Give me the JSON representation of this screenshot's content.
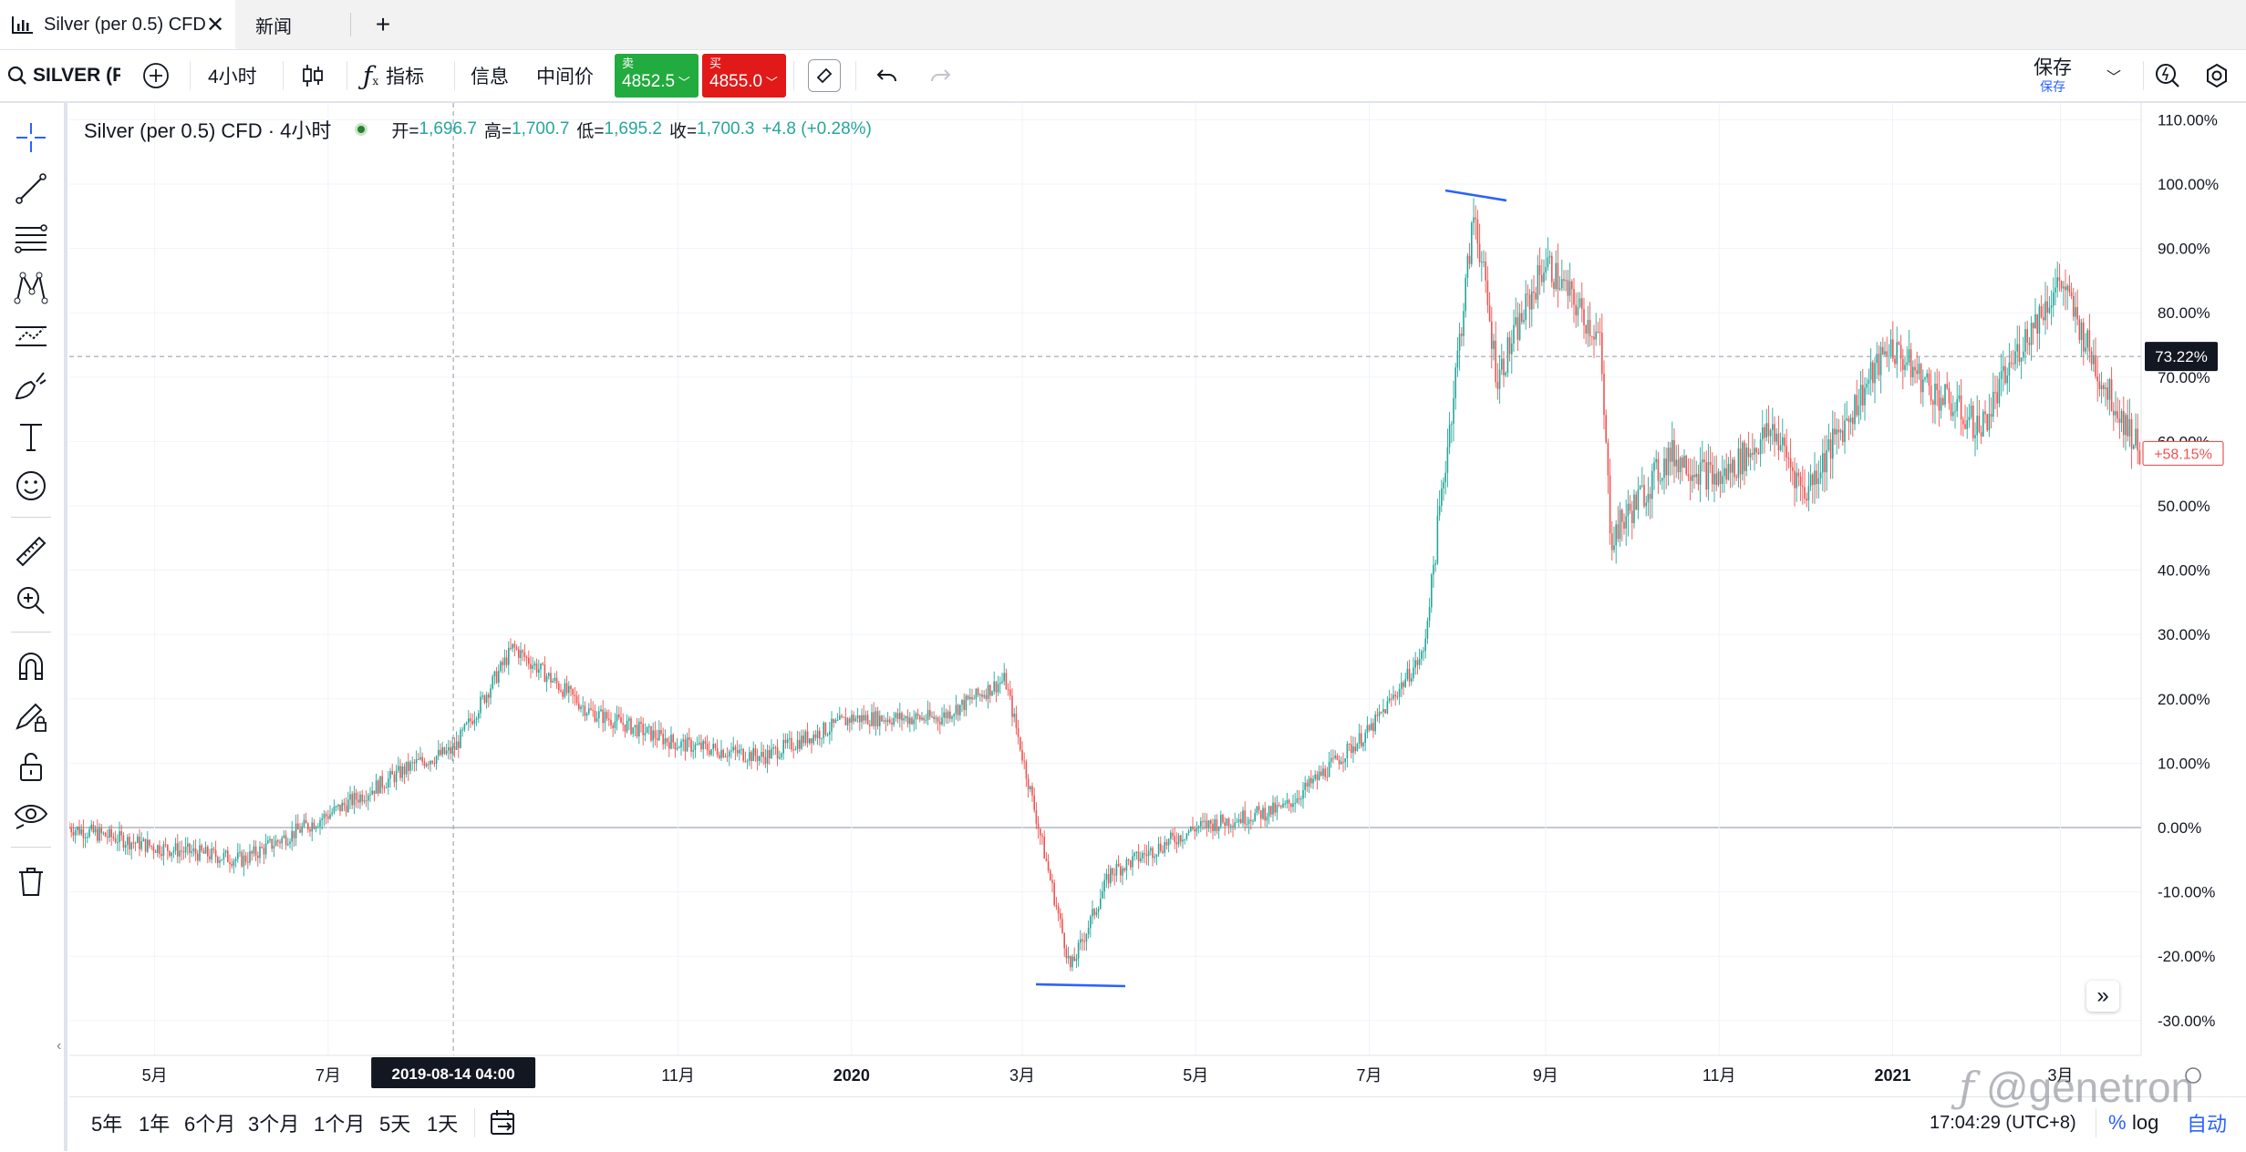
{
  "tabs": [
    {
      "label": "Silver (per 0.5) CFD",
      "active": true
    },
    {
      "label": "新闻",
      "active": false
    }
  ],
  "toolbar": {
    "symbol": "SILVER (P",
    "interval": "4小时",
    "indicators": "指标",
    "info": "信息",
    "mid_price": "中间价",
    "sell_label": "卖",
    "sell_price": "4852.5",
    "buy_label": "买",
    "buy_price": "4855.0",
    "save_label": "保存",
    "save_sub": "保存"
  },
  "legend": {
    "title": "Silver (per 0.5) CFD · 4小时",
    "open_label": "开=",
    "open": "1,696.7",
    "high_label": "高=",
    "high": "1,700.7",
    "low_label": "低=",
    "low": "1,695.2",
    "close_label": "收=",
    "close": "1,700.3",
    "change": "+4.8 (+0.28%)"
  },
  "price_axis": {
    "labels": [
      "110.00%",
      "100.00%",
      "90.00%",
      "80.00%",
      "70.00%",
      "60.00%",
      "50.00%",
      "40.00%",
      "30.00%",
      "20.00%",
      "10.00%",
      "0.00%",
      "-10.00%",
      "-20.00%",
      "-30.00%"
    ],
    "values": [
      110,
      100,
      90,
      80,
      70,
      60,
      50,
      40,
      30,
      20,
      10,
      0,
      -10,
      -20,
      -30
    ],
    "crosshair_tag": "73.22%",
    "crosshair_value": 73.22,
    "last_tag": "+58.15%",
    "last_value": 58.15
  },
  "time_axis": {
    "labels": [
      "5月",
      "7月",
      "11月",
      "2020",
      "3月",
      "5月",
      "7月",
      "9月",
      "11月",
      "2021",
      "3月"
    ],
    "crosshair_tag": "2019-08-14   04:00"
  },
  "ranges": [
    "5年",
    "1年",
    "6个月",
    "3个月",
    "1个月",
    "5天",
    "1天"
  ],
  "status": {
    "time": "17:04:29 (UTC+8)",
    "percent": "%",
    "log": "log",
    "auto": "自动"
  },
  "watermark": "@genetron",
  "colors": {
    "up": "#26a69a",
    "down": "#ef5350",
    "line": "#2962ff",
    "sell": "#22ab3f",
    "buy": "#e11919",
    "tag_dark": "#131722"
  },
  "chart_data": {
    "type": "candlestick",
    "symbol": "Silver (per 0.5) CFD",
    "interval": "4小时",
    "y_unit": "% change",
    "ylim": [
      -35,
      112
    ],
    "x": [
      "2019-04-01",
      "2019-05-01",
      "2019-06-01",
      "2019-07-01",
      "2019-08-01",
      "2019-08-14",
      "2019-09-04",
      "2019-10-01",
      "2019-11-01",
      "2019-12-01",
      "2020-01-01",
      "2020-02-01",
      "2020-02-24",
      "2020-03-18",
      "2020-04-01",
      "2020-05-01",
      "2020-06-01",
      "2020-07-01",
      "2020-07-20",
      "2020-08-07",
      "2020-08-15",
      "2020-09-01",
      "2020-09-20",
      "2020-09-24",
      "2020-10-15",
      "2020-11-01",
      "2020-11-20",
      "2020-12-01",
      "2020-12-31",
      "2021-01-15",
      "2021-02-01",
      "2021-02-15",
      "2021-03-01",
      "2021-03-15",
      "2021-03-30"
    ],
    "y": [
      0,
      -3,
      -5,
      2,
      10,
      12,
      28,
      18,
      13,
      11,
      17,
      17,
      23,
      -22,
      -7,
      0,
      3,
      15,
      27,
      96,
      70,
      88,
      76,
      45,
      58,
      54,
      62,
      52,
      75,
      68,
      62,
      75,
      85,
      70,
      58
    ]
  }
}
